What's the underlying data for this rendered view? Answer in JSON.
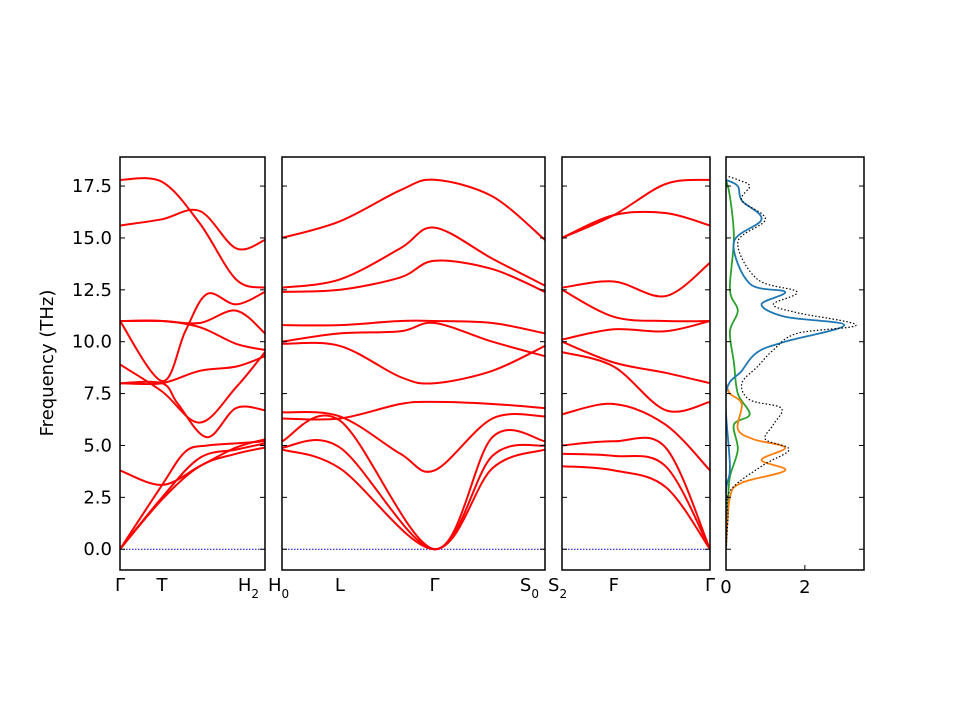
{
  "chart_data": {
    "type": "line",
    "ylabel": "Frequency (THz)",
    "ylim": [
      -1.0,
      18.9
    ],
    "yticks": [
      "0.0",
      "2.5",
      "5.0",
      "7.5",
      "10.0",
      "12.5",
      "15.0",
      "17.5"
    ],
    "band_color": "#ff0000",
    "zero_line_color": "#0000cd",
    "panels": [
      {
        "name": "Γ-T-H2",
        "xlim": [
          0,
          1
        ],
        "kpoints": [
          {
            "x": 0,
            "label": "Γ",
            "sub": ""
          },
          {
            "x": 0.29,
            "label": "T",
            "sub": ""
          },
          {
            "x": 1,
            "label": "H",
            "sub": "2"
          }
        ],
        "bands": [
          [
            [
              0,
              0
            ],
            [
              0.29,
              2.4
            ],
            [
              0.55,
              4.0
            ],
            [
              0.8,
              4.6
            ],
            [
              1,
              4.9
            ]
          ],
          [
            [
              0,
              0
            ],
            [
              0.29,
              2.5
            ],
            [
              0.55,
              4.4
            ],
            [
              0.8,
              4.8
            ],
            [
              1,
              5.1
            ]
          ],
          [
            [
              0,
              0
            ],
            [
              0.29,
              3.1
            ],
            [
              0.45,
              4.7
            ],
            [
              0.6,
              5.0
            ],
            [
              0.8,
              5.1
            ],
            [
              1,
              5.2
            ]
          ],
          [
            [
              0,
              3.8
            ],
            [
              0.29,
              3.1
            ],
            [
              0.55,
              4.0
            ],
            [
              0.8,
              4.9
            ],
            [
              1,
              5.3
            ]
          ],
          [
            [
              0,
              8.9
            ],
            [
              0.29,
              7.6
            ],
            [
              0.55,
              6.1
            ],
            [
              0.8,
              7.8
            ],
            [
              1,
              9.5
            ]
          ],
          [
            [
              0,
              8.0
            ],
            [
              0.29,
              8.0
            ],
            [
              0.55,
              8.6
            ],
            [
              0.8,
              8.8
            ],
            [
              1,
              9.3
            ]
          ],
          [
            [
              0,
              8.0
            ],
            [
              0.29,
              8.0
            ],
            [
              0.4,
              7.0
            ],
            [
              0.6,
              5.4
            ],
            [
              0.8,
              6.8
            ],
            [
              1,
              6.7
            ]
          ],
          [
            [
              0,
              11.0
            ],
            [
              0.29,
              11.0
            ],
            [
              0.55,
              10.7
            ],
            [
              0.8,
              9.9
            ],
            [
              1,
              9.6
            ]
          ],
          [
            [
              0,
              11.0
            ],
            [
              0.29,
              11.0
            ],
            [
              0.55,
              10.9
            ],
            [
              0.8,
              11.5
            ],
            [
              1,
              10.4
            ]
          ],
          [
            [
              0,
              11.0
            ],
            [
              0.29,
              8.1
            ],
            [
              0.45,
              10.5
            ],
            [
              0.6,
              12.3
            ],
            [
              0.8,
              11.8
            ],
            [
              1,
              12.4
            ]
          ],
          [
            [
              0,
              15.6
            ],
            [
              0.29,
              15.9
            ],
            [
              0.55,
              16.3
            ],
            [
              0.8,
              14.5
            ],
            [
              1,
              14.9
            ]
          ],
          [
            [
              0,
              17.8
            ],
            [
              0.29,
              17.7
            ],
            [
              0.55,
              15.7
            ],
            [
              0.8,
              13.0
            ],
            [
              1,
              12.6
            ]
          ]
        ]
      },
      {
        "name": "H0-L-Γ-S0",
        "xlim": [
          0,
          1
        ],
        "kpoints": [
          {
            "x": 0,
            "label": "H",
            "sub": "0"
          },
          {
            "x": 0.22,
            "label": "L",
            "sub": ""
          },
          {
            "x": 0.58,
            "label": "Γ",
            "sub": ""
          },
          {
            "x": 1,
            "label": "S",
            "sub": "0"
          }
        ],
        "bands": [
          [
            [
              0,
              4.8
            ],
            [
              0.22,
              3.9
            ],
            [
              0.58,
              0
            ],
            [
              0.8,
              3.9
            ],
            [
              1,
              4.8
            ]
          ],
          [
            [
              0,
              4.9
            ],
            [
              0.22,
              4.9
            ],
            [
              0.58,
              0
            ],
            [
              0.8,
              4.5
            ],
            [
              1,
              5.0
            ]
          ],
          [
            [
              0,
              5.2
            ],
            [
              0.22,
              6.2
            ],
            [
              0.58,
              0
            ],
            [
              0.8,
              5.4
            ],
            [
              1,
              5.2
            ]
          ],
          [
            [
              0,
              6.6
            ],
            [
              0.22,
              6.4
            ],
            [
              0.45,
              4.6
            ],
            [
              0.58,
              3.8
            ],
            [
              0.8,
              6.3
            ],
            [
              1,
              6.4
            ]
          ],
          [
            [
              0,
              6.3
            ],
            [
              0.22,
              6.3
            ],
            [
              0.45,
              7.0
            ],
            [
              0.58,
              7.1
            ],
            [
              0.8,
              7.0
            ],
            [
              1,
              6.8
            ]
          ],
          [
            [
              0,
              9.9
            ],
            [
              0.22,
              9.8
            ],
            [
              0.45,
              8.3
            ],
            [
              0.58,
              8.0
            ],
            [
              0.8,
              8.6
            ],
            [
              1,
              9.8
            ]
          ],
          [
            [
              0,
              10.0
            ],
            [
              0.22,
              10.4
            ],
            [
              0.45,
              10.5
            ],
            [
              0.58,
              10.9
            ],
            [
              0.8,
              10.0
            ],
            [
              1,
              9.3
            ]
          ],
          [
            [
              0,
              10.8
            ],
            [
              0.22,
              10.8
            ],
            [
              0.45,
              11.0
            ],
            [
              0.58,
              11.0
            ],
            [
              0.8,
              10.9
            ],
            [
              1,
              10.4
            ]
          ],
          [
            [
              0,
              12.4
            ],
            [
              0.22,
              12.5
            ],
            [
              0.45,
              13.1
            ],
            [
              0.58,
              13.9
            ],
            [
              0.8,
              13.5
            ],
            [
              1,
              12.4
            ]
          ],
          [
            [
              0,
              12.6
            ],
            [
              0.22,
              13.0
            ],
            [
              0.45,
              14.5
            ],
            [
              0.58,
              15.5
            ],
            [
              0.8,
              14.0
            ],
            [
              1,
              12.7
            ]
          ],
          [
            [
              0,
              15.0
            ],
            [
              0.22,
              15.8
            ],
            [
              0.45,
              17.3
            ],
            [
              0.58,
              17.8
            ],
            [
              0.8,
              17.0
            ],
            [
              1,
              14.9
            ]
          ]
        ]
      },
      {
        "name": "S2-F-Γ",
        "xlim": [
          0,
          1
        ],
        "kpoints": [
          {
            "x": 0,
            "label": "S",
            "sub": "2"
          },
          {
            "x": 0.35,
            "label": "F",
            "sub": ""
          },
          {
            "x": 1,
            "label": "Γ",
            "sub": ""
          }
        ],
        "bands": [
          [
            [
              0,
              4.0
            ],
            [
              0.35,
              3.8
            ],
            [
              0.7,
              3.0
            ],
            [
              1,
              0
            ]
          ],
          [
            [
              0,
              4.6
            ],
            [
              0.35,
              4.5
            ],
            [
              0.7,
              4.0
            ],
            [
              1,
              0
            ]
          ],
          [
            [
              0,
              5.0
            ],
            [
              0.35,
              5.2
            ],
            [
              0.7,
              4.9
            ],
            [
              1,
              0
            ]
          ],
          [
            [
              0,
              6.5
            ],
            [
              0.35,
              7.0
            ],
            [
              0.7,
              6.0
            ],
            [
              1,
              3.8
            ]
          ],
          [
            [
              0,
              9.5
            ],
            [
              0.35,
              8.8
            ],
            [
              0.7,
              6.7
            ],
            [
              1,
              7.1
            ]
          ],
          [
            [
              0,
              10.0
            ],
            [
              0.35,
              9.0
            ],
            [
              0.7,
              8.5
            ],
            [
              1,
              8.0
            ]
          ],
          [
            [
              0,
              10.1
            ],
            [
              0.35,
              10.6
            ],
            [
              0.7,
              10.5
            ],
            [
              1,
              11.0
            ]
          ],
          [
            [
              0,
              12.5
            ],
            [
              0.35,
              11.2
            ],
            [
              0.7,
              11.0
            ],
            [
              1,
              11.0
            ]
          ],
          [
            [
              0,
              12.6
            ],
            [
              0.35,
              12.9
            ],
            [
              0.7,
              12.2
            ],
            [
              1,
              13.8
            ]
          ],
          [
            [
              0,
              15.0
            ],
            [
              0.35,
              16.1
            ],
            [
              0.7,
              16.2
            ],
            [
              1,
              15.6
            ]
          ],
          [
            [
              0,
              15.0
            ],
            [
              0.35,
              16.1
            ],
            [
              0.7,
              17.6
            ],
            [
              1,
              17.8
            ]
          ]
        ]
      }
    ],
    "dos": {
      "xlim": [
        0,
        3.5
      ],
      "xticks": [
        "0",
        "2"
      ],
      "series": [
        {
          "color": "#000000",
          "style": "dotted",
          "points": [
            [
              0,
              0
            ],
            [
              0.05,
              1.5
            ],
            [
              0.1,
              2.8
            ],
            [
              0.9,
              4.0
            ],
            [
              1.6,
              4.8
            ],
            [
              1.0,
              5.3
            ],
            [
              1.2,
              6.0
            ],
            [
              1.4,
              6.8
            ],
            [
              0.6,
              7.2
            ],
            [
              0.4,
              8.0
            ],
            [
              0.8,
              8.8
            ],
            [
              1.2,
              9.6
            ],
            [
              1.8,
              10.4
            ],
            [
              3.3,
              10.8
            ],
            [
              1.8,
              11.4
            ],
            [
              1.2,
              11.8
            ],
            [
              1.8,
              12.4
            ],
            [
              0.8,
              13.0
            ],
            [
              0.3,
              14.8
            ],
            [
              1.0,
              15.9
            ],
            [
              0.4,
              16.8
            ],
            [
              0.6,
              17.5
            ],
            [
              0.3,
              17.8
            ],
            [
              0,
              18.0
            ]
          ]
        },
        {
          "color": "#1f77b4",
          "style": "solid",
          "points": [
            [
              0,
              0
            ],
            [
              0,
              2.8
            ],
            [
              0.1,
              4.0
            ],
            [
              0,
              7.5
            ],
            [
              0.4,
              8.6
            ],
            [
              0.8,
              9.5
            ],
            [
              1.5,
              10.0
            ],
            [
              3.0,
              10.8
            ],
            [
              1.5,
              11.2
            ],
            [
              0.9,
              11.8
            ],
            [
              1.5,
              12.4
            ],
            [
              0.6,
              12.8
            ],
            [
              0.2,
              14.8
            ],
            [
              0.9,
              15.9
            ],
            [
              0.4,
              16.8
            ],
            [
              0.3,
              17.5
            ],
            [
              0,
              17.8
            ]
          ]
        },
        {
          "color": "#ff7f0e",
          "style": "solid",
          "points": [
            [
              0,
              0
            ],
            [
              0.1,
              2.5
            ],
            [
              0.4,
              3.2
            ],
            [
              1.5,
              3.8
            ],
            [
              0.9,
              4.3
            ],
            [
              1.5,
              4.9
            ],
            [
              0.7,
              5.3
            ],
            [
              0.3,
              5.8
            ],
            [
              0.4,
              7.0
            ],
            [
              0.1,
              7.5
            ],
            [
              0,
              8.0
            ]
          ]
        },
        {
          "color": "#2ca02c",
          "style": "solid",
          "points": [
            [
              0,
              0
            ],
            [
              0.05,
              2.2
            ],
            [
              0.1,
              3.5
            ],
            [
              0.3,
              4.8
            ],
            [
              0.2,
              6.0
            ],
            [
              0.6,
              6.5
            ],
            [
              0.3,
              7.5
            ],
            [
              0.2,
              9.0
            ],
            [
              0.1,
              10.5
            ],
            [
              0.3,
              11.5
            ],
            [
              0.1,
              12.5
            ],
            [
              0.2,
              15.0
            ],
            [
              0.1,
              17.0
            ],
            [
              0,
              17.8
            ]
          ]
        }
      ]
    }
  }
}
